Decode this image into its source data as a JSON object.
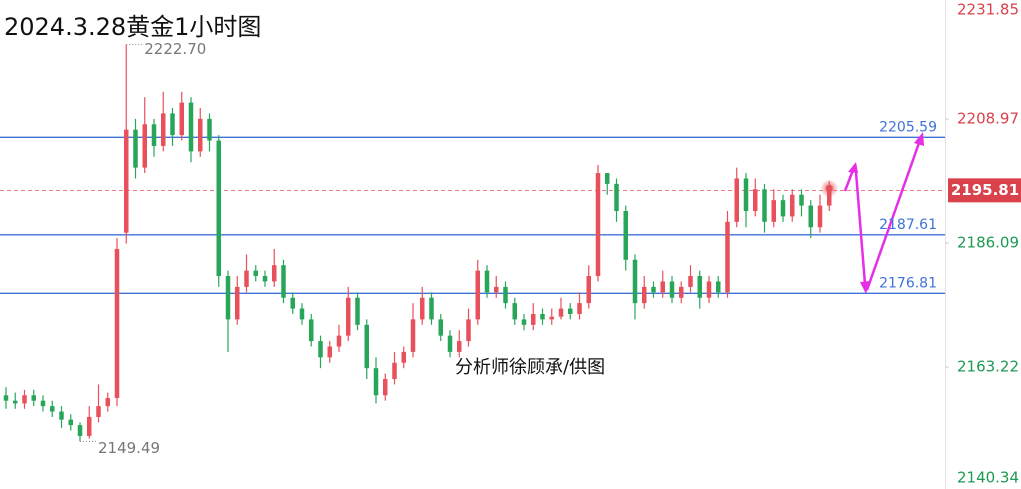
{
  "chart_data": {
    "type": "candlestick",
    "title": "2024.3.28黄金1小时图",
    "annotation": "分析师徐顾承/供图",
    "open": [
      2158,
      2157,
      2156.5,
      2158,
      2157,
      2156,
      2155,
      2153.5,
      2152.5,
      2150.5,
      2154,
      2156,
      2157.5,
      2188,
      2207,
      2200,
      2208,
      2204,
      2210,
      2206,
      2212,
      2203,
      2209,
      2205,
      2180,
      2172,
      2178,
      2181,
      2180,
      2179,
      2182,
      2176,
      2174,
      2172,
      2168,
      2165,
      2167,
      2169,
      2176,
      2171,
      2163,
      2158,
      2161,
      2164,
      2166,
      2172,
      2176,
      2172,
      2169,
      2166,
      2168,
      2172,
      2181,
      2177,
      2178,
      2175,
      2172,
      2171,
      2173,
      2172,
      2172.5,
      2174,
      2173,
      2175,
      2180,
      2199,
      2197,
      2192,
      2183,
      2175,
      2178,
      2177,
      2179,
      2176,
      2178,
      2180,
      2176,
      2179,
      2177,
      2190,
      2198,
      2192,
      2196,
      2190,
      2194,
      2191,
      2195,
      2193,
      2189,
      2193
    ],
    "high": [
      2159.5,
      2158.5,
      2159,
      2159,
      2158,
      2157,
      2156,
      2154.5,
      2153,
      2156,
      2160,
      2158.5,
      2187,
      2222.7,
      2209,
      2213,
      2209,
      2214,
      2211,
      2214,
      2213,
      2211,
      2210,
      2206,
      2181,
      2180,
      2184,
      2182,
      2181,
      2185,
      2183,
      2177,
      2175,
      2173,
      2169,
      2168,
      2171,
      2178,
      2177,
      2172,
      2165,
      2162,
      2166,
      2167,
      2175,
      2178,
      2177,
      2173,
      2170,
      2170,
      2174,
      2183,
      2182,
      2180,
      2179,
      2176,
      2173,
      2175,
      2174,
      2174,
      2176,
      2175,
      2177,
      2182,
      2200.5,
      2199,
      2198,
      2193,
      2184,
      2180,
      2179,
      2181,
      2180,
      2179,
      2182,
      2181,
      2180,
      2180,
      2192,
      2200,
      2199,
      2198,
      2197,
      2196,
      2195,
      2196,
      2196,
      2194,
      2195,
      2197.5
    ],
    "low": [
      2155.5,
      2155.5,
      2155.5,
      2156,
      2155,
      2154,
      2152,
      2151.5,
      2149.49,
      2150,
      2153,
      2155,
      2156,
      2186,
      2198,
      2199,
      2202,
      2203,
      2204,
      2205,
      2201,
      2202,
      2203,
      2178,
      2166,
      2171,
      2177,
      2179,
      2178,
      2178,
      2175,
      2173,
      2171,
      2167,
      2163,
      2164,
      2166,
      2168,
      2170,
      2161,
      2156.5,
      2157,
      2160,
      2163,
      2165,
      2171,
      2171,
      2168,
      2165,
      2165,
      2167,
      2171,
      2176,
      2176,
      2174,
      2171,
      2170,
      2170,
      2171,
      2171,
      2172,
      2172,
      2172,
      2174,
      2179,
      2195,
      2190,
      2181,
      2172,
      2174,
      2176,
      2176,
      2175,
      2175,
      2177,
      2174,
      2175,
      2176,
      2176,
      2189,
      2189,
      2191,
      2188,
      2189,
      2190,
      2190,
      2191,
      2187,
      2188,
      2192
    ],
    "close": [
      2157,
      2156.5,
      2158,
      2157,
      2156,
      2155,
      2153.5,
      2152.5,
      2150.5,
      2154,
      2156,
      2157.5,
      2185,
      2207,
      2200,
      2208,
      2204,
      2210,
      2206,
      2212,
      2203,
      2209,
      2205,
      2180,
      2172,
      2178,
      2181,
      2180,
      2179,
      2182,
      2176,
      2174,
      2172,
      2168,
      2165,
      2167,
      2169,
      2176,
      2171,
      2163,
      2158,
      2161,
      2164,
      2166,
      2172,
      2176,
      2172,
      2169,
      2166,
      2168,
      2172,
      2181,
      2177,
      2178,
      2175,
      2172,
      2171,
      2173,
      2172,
      2172.5,
      2174,
      2173,
      2175,
      2180,
      2199,
      2197,
      2192,
      2183,
      2175,
      2178,
      2177,
      2179,
      2176,
      2178,
      2180,
      2176,
      2179,
      2177,
      2190,
      2198,
      2192,
      2196,
      2190,
      2194,
      2191,
      2195,
      2193,
      2189,
      2193,
      2195.81
    ],
    "up_color": "#e8505b",
    "down_color": "#27a65a",
    "high_label": {
      "value": 2222.7,
      "label": "2222.70"
    },
    "low_label": 2149.49,
    "levels": [
      2205.59,
      2187.61,
      2176.81
    ],
    "level_color": "#3f73d9",
    "current_price": 2195.81,
    "ylim": [
      2140.34,
      2231.85
    ],
    "yticks": [
      2140.34,
      2163.22,
      2186.09,
      2208.97,
      2231.85
    ]
  }
}
